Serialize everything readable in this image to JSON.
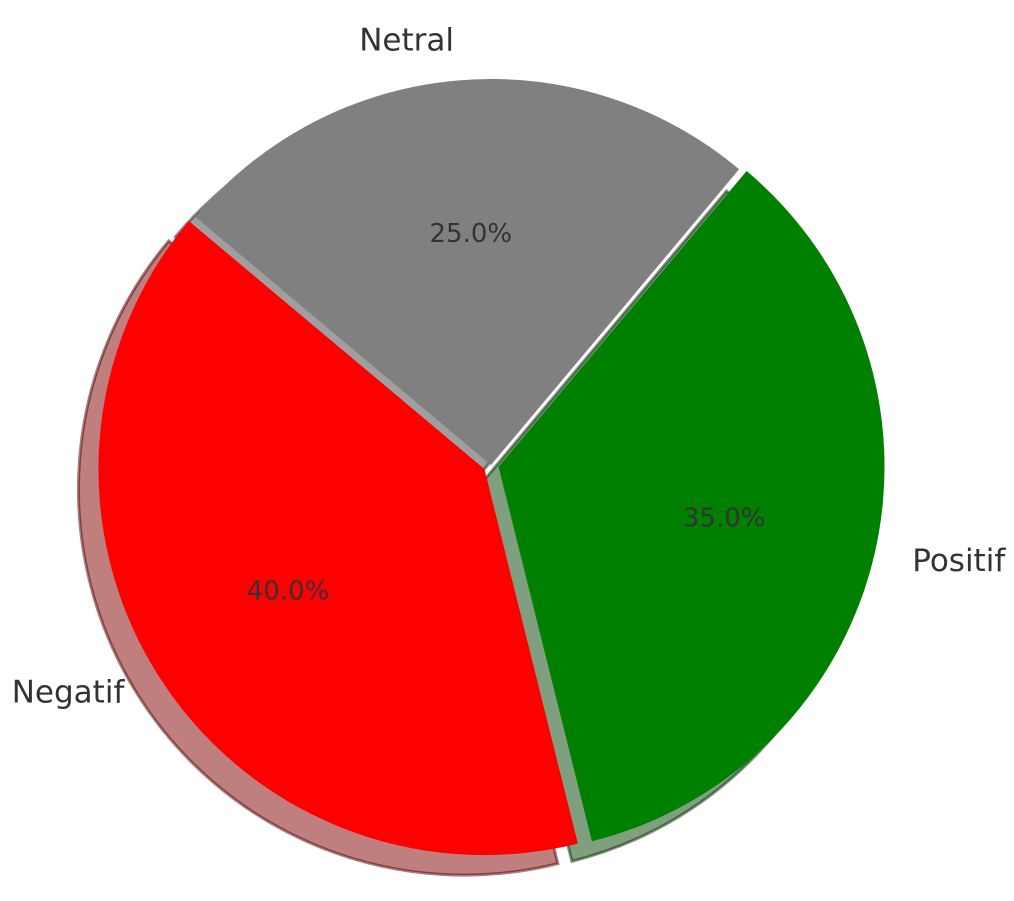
{
  "chart_data": {
    "type": "pie",
    "title": "",
    "start_angle_deg": 140,
    "direction": "counterclockwise",
    "shadow": true,
    "explode": [
      0.02,
      0.02,
      0.0
    ],
    "slices": [
      {
        "label": "Negatif",
        "value": 40.0,
        "pct_label": "40.0%",
        "color": "#ff0000"
      },
      {
        "label": "Positif",
        "value": 35.0,
        "pct_label": "35.0%",
        "color": "#008000"
      },
      {
        "label": "Netral",
        "value": 25.0,
        "pct_label": "25.0%",
        "color": "#808080"
      }
    ]
  }
}
